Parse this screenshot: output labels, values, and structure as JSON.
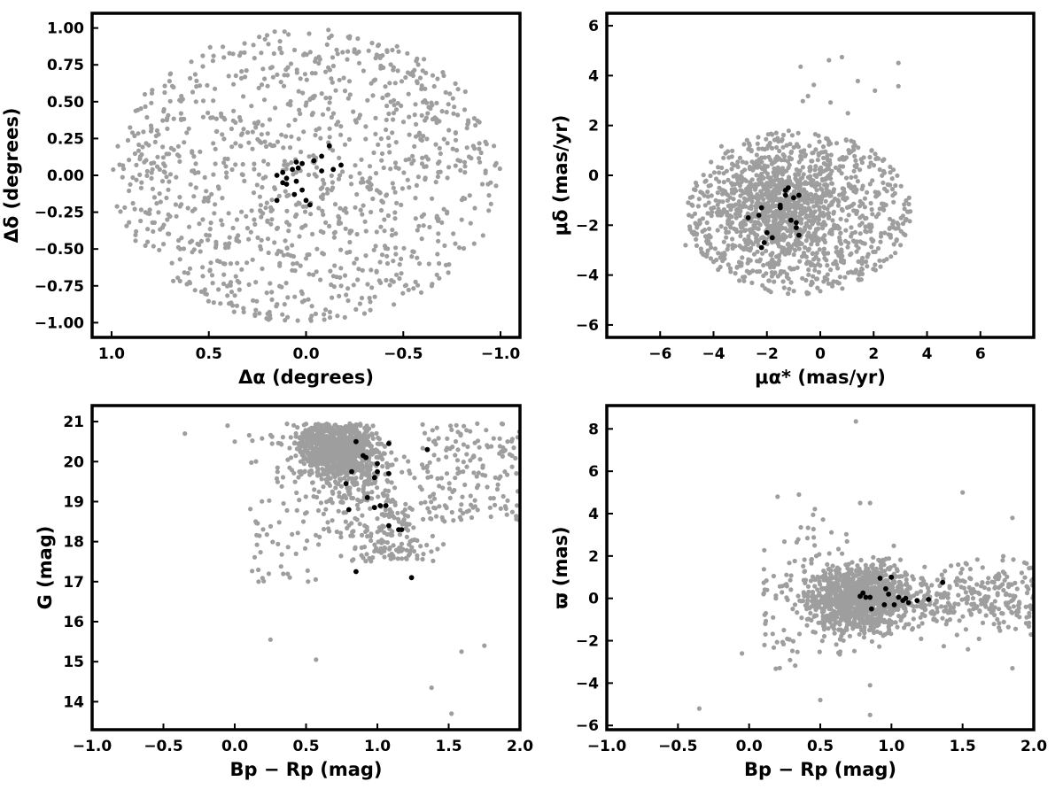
{
  "colors": {
    "field": "#9e9e9e",
    "members": "#000000",
    "frame": "#000000"
  },
  "chart_data": [
    {
      "type": "scatter",
      "id": "sky",
      "xlabel": "Δα (degrees)",
      "ylabel": "Δδ (degrees)",
      "xlim": [
        1.1,
        -1.1
      ],
      "ylim": [
        -1.1,
        1.1
      ],
      "xticks": [
        1.0,
        0.5,
        0.0,
        -0.5,
        -1.0
      ],
      "xtick_labels": [
        "1.0",
        "0.5",
        "0.0",
        "−0.5",
        "−1.0"
      ],
      "yticks": [
        1.0,
        0.75,
        0.5,
        0.25,
        0.0,
        -0.25,
        -0.5,
        -0.75,
        -1.0
      ],
      "ytick_labels": [
        "1.00",
        "0.75",
        "0.50",
        "0.25",
        "0.00",
        "−0.25",
        "−0.50",
        "−0.75",
        "−1.00"
      ],
      "series": [
        {
          "role": "field",
          "color": "#9e9e9e",
          "shape": "disc",
          "radius_data": 1.0,
          "center": [
            0,
            0
          ],
          "count": 1100
        },
        {
          "role": "members",
          "color": "#000000",
          "points": [
            [
              -0.12,
              0.2
            ],
            [
              -0.08,
              0.13
            ],
            [
              -0.04,
              0.1
            ],
            [
              0.02,
              0.08
            ],
            [
              0.05,
              0.09
            ],
            [
              0.07,
              0.04
            ],
            [
              0.12,
              0.02
            ],
            [
              0.15,
              0.0
            ],
            [
              -0.18,
              0.07
            ],
            [
              -0.14,
              0.04
            ],
            [
              -0.08,
              0.03
            ],
            [
              0.04,
              0.05
            ],
            [
              0.1,
              -0.02
            ],
            [
              0.12,
              -0.05
            ],
            [
              0.05,
              -0.04
            ],
            [
              0.02,
              -0.1
            ],
            [
              0.06,
              -0.13
            ],
            [
              0.0,
              -0.17
            ],
            [
              -0.02,
              -0.2
            ],
            [
              0.15,
              -0.17
            ],
            [
              0.1,
              -0.06
            ]
          ]
        }
      ]
    },
    {
      "type": "scatter",
      "id": "proper-motion",
      "xlabel": "μα* (mas/yr)",
      "ylabel": "μδ (mas/yr)",
      "xlim": [
        -8,
        8
      ],
      "ylim": [
        -6.5,
        6.5
      ],
      "xticks": [
        -6,
        -4,
        -2,
        0,
        2,
        4,
        6
      ],
      "xtick_labels": [
        "−6",
        "−4",
        "−2",
        "0",
        "2",
        "4",
        "6"
      ],
      "yticks": [
        6,
        4,
        2,
        0,
        -2,
        -4,
        -6
      ],
      "ytick_labels": [
        "6",
        "4",
        "2",
        "0",
        "−2",
        "−4",
        "−6"
      ],
      "series": [
        {
          "role": "field",
          "color": "#9e9e9e",
          "shape": "ellipse",
          "center": [
            -0.8,
            -1.5
          ],
          "radii": [
            4.2,
            3.3
          ],
          "count": 1500
        },
        {
          "role": "members",
          "color": "#000000",
          "points": [
            [
              -2.7,
              -1.7
            ],
            [
              -2.2,
              -1.3
            ],
            [
              -2.3,
              -1.6
            ],
            [
              -2.0,
              -2.3
            ],
            [
              -1.8,
              -2.5
            ],
            [
              -2.1,
              -2.7
            ],
            [
              -2.2,
              -2.9
            ],
            [
              -1.5,
              -1.2
            ],
            [
              -1.3,
              -0.6
            ],
            [
              -1.2,
              -0.5
            ],
            [
              -1.0,
              -0.9
            ],
            [
              -0.8,
              -0.8
            ],
            [
              -1.1,
              -1.8
            ],
            [
              -0.9,
              -1.9
            ],
            [
              -0.9,
              -2.1
            ],
            [
              -0.8,
              -2.4
            ],
            [
              -1.5,
              -1.3
            ],
            [
              -1.3,
              -0.8
            ]
          ]
        }
      ]
    },
    {
      "type": "scatter",
      "id": "cmd",
      "xlabel": "Bp − Rp (mag)",
      "ylabel": "G (mag)",
      "xlim": [
        -1.0,
        2.0
      ],
      "ylim": [
        13.3,
        21.4
      ],
      "xticks": [
        -1.0,
        -0.5,
        0.0,
        0.5,
        1.0,
        1.5,
        2.0
      ],
      "xtick_labels": [
        "−1.0",
        "−0.5",
        "0.0",
        "0.5",
        "1.0",
        "1.5",
        "2.0"
      ],
      "yticks": [
        21,
        20,
        19,
        18,
        17,
        16,
        15,
        14
      ],
      "ytick_labels": [
        "21",
        "20",
        "19",
        "18",
        "17",
        "16",
        "15",
        "14"
      ],
      "series": [
        {
          "role": "field",
          "color": "#9e9e9e",
          "shape": "cmd",
          "count": 1500
        },
        {
          "role": "members",
          "color": "#000000",
          "points": [
            [
              0.85,
              20.5
            ],
            [
              0.9,
              20.15
            ],
            [
              0.92,
              20.1
            ],
            [
              1.0,
              19.95
            ],
            [
              1.08,
              20.45
            ],
            [
              0.82,
              19.75
            ],
            [
              0.78,
              19.45
            ],
            [
              0.98,
              19.6
            ],
            [
              1.0,
              19.75
            ],
            [
              1.08,
              19.7
            ],
            [
              1.35,
              20.3
            ],
            [
              0.93,
              19.1
            ],
            [
              0.8,
              18.8
            ],
            [
              0.98,
              18.85
            ],
            [
              1.02,
              18.9
            ],
            [
              1.06,
              18.9
            ],
            [
              1.08,
              18.4
            ],
            [
              1.15,
              18.3
            ],
            [
              1.17,
              18.3
            ],
            [
              0.85,
              17.25
            ],
            [
              1.24,
              17.1
            ]
          ]
        }
      ]
    },
    {
      "type": "scatter",
      "id": "parallax",
      "xlabel": "Bp − Rp (mag)",
      "ylabel": "ϖ (mas)",
      "xlim": [
        -1.0,
        2.0
      ],
      "ylim": [
        -6.2,
        9.1
      ],
      "xticks": [
        -1.0,
        -0.5,
        0.0,
        0.5,
        1.0,
        1.5,
        2.0
      ],
      "xtick_labels": [
        "−1.0",
        "−0.5",
        "0.0",
        "0.5",
        "1.0",
        "1.5",
        "2.0"
      ],
      "yticks": [
        8,
        6,
        4,
        2,
        0,
        -2,
        -4,
        -6
      ],
      "ytick_labels": [
        "8",
        "6",
        "4",
        "2",
        "0",
        "−2",
        "−4",
        "−6"
      ],
      "series": [
        {
          "role": "field",
          "color": "#9e9e9e",
          "shape": "plx",
          "count": 1500
        },
        {
          "role": "members",
          "color": "#000000",
          "points": [
            [
              0.78,
              0.1
            ],
            [
              0.8,
              0.25
            ],
            [
              0.82,
              0.05
            ],
            [
              0.85,
              0.05
            ],
            [
              0.86,
              -0.5
            ],
            [
              0.92,
              0.95
            ],
            [
              0.96,
              0.45
            ],
            [
              0.98,
              0.2
            ],
            [
              1.0,
              1.0
            ],
            [
              1.02,
              -0.3
            ],
            [
              1.05,
              0.05
            ],
            [
              1.08,
              -0.1
            ],
            [
              1.1,
              0.0
            ],
            [
              1.12,
              -0.2
            ],
            [
              1.18,
              -0.1
            ],
            [
              1.26,
              -0.05
            ],
            [
              1.36,
              0.75
            ],
            [
              0.95,
              -0.3
            ]
          ]
        }
      ]
    }
  ]
}
